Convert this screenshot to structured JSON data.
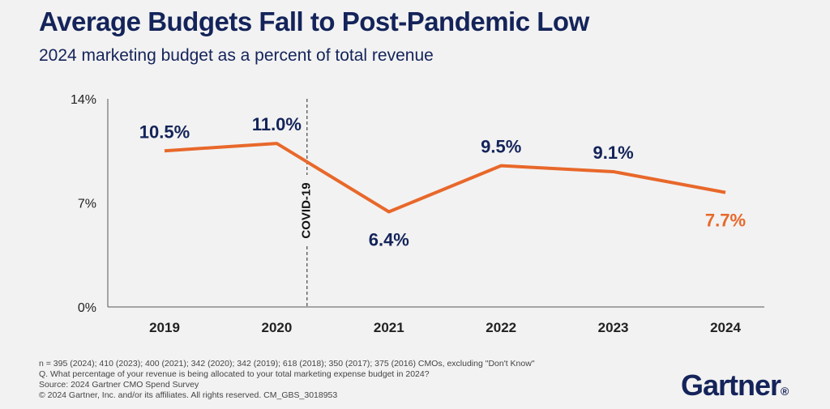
{
  "title": "Average Budgets Fall to Post-Pandemic Low",
  "subtitle": "2024 marketing budget as a percent of total revenue",
  "chart_data": {
    "type": "line",
    "categories": [
      "2019",
      "2020",
      "2021",
      "2022",
      "2023",
      "2024"
    ],
    "values": [
      10.5,
      11.0,
      6.4,
      9.5,
      9.1,
      7.7
    ],
    "data_labels": [
      "10.5%",
      "11.0%",
      "6.4%",
      "9.5%",
      "9.1%",
      "7.7%"
    ],
    "ylim": [
      0,
      14
    ],
    "yticks": [
      0,
      7,
      14
    ],
    "ytick_labels": [
      "0%",
      "7%",
      "14%"
    ],
    "xlabel": "",
    "ylabel": "",
    "annotation": {
      "label": "COVID-19",
      "between": [
        "2020",
        "2021"
      ],
      "x_position": 1.27
    },
    "colors": {
      "line": "#e8682a",
      "text": "#14245a",
      "highlight_label": "#e8682a",
      "axis": "#555555",
      "divider": "#555555"
    }
  },
  "footer": {
    "line1": "n = 395 (2024); 410 (2023); 400 (2021); 342 (2020); 342 (2019); 618 (2018); 350 (2017); 375 (2016) CMOs, excluding \"Don't Know\"",
    "line2": "Q. What percentage of your revenue is being allocated to your total marketing expense budget in 2024?",
    "line3": "Source: 2024 Gartner CMO Spend Survey",
    "line4": "© 2024 Gartner, Inc. and/or its affiliates. All rights reserved. CM_GBS_3018953"
  },
  "logo": {
    "text": "Gartner",
    "mark": "®"
  }
}
